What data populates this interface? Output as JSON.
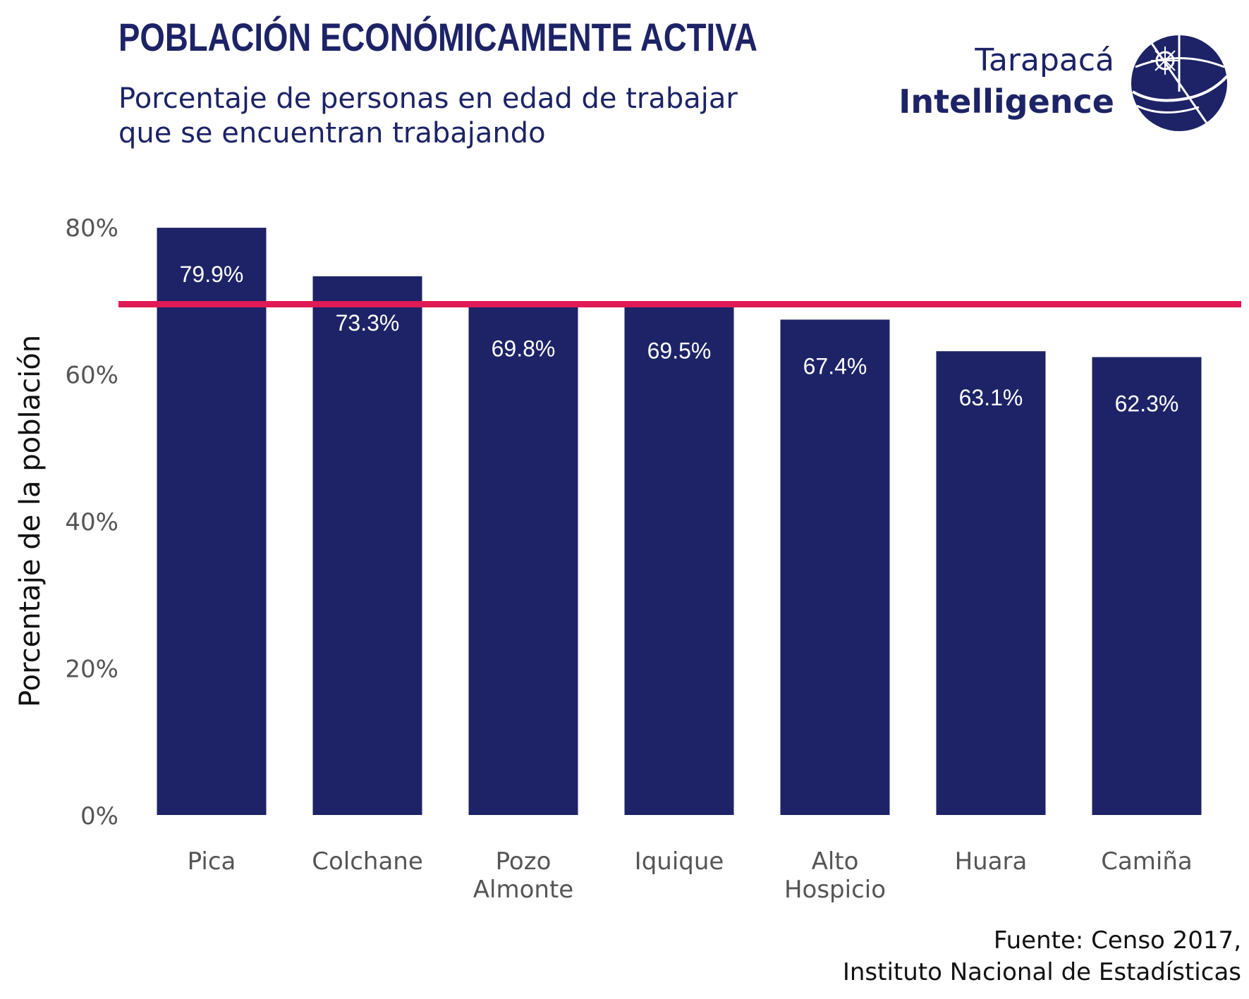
{
  "header": {
    "title": "POBLACIÓN ECONÓMICAMENTE ACTIVA",
    "subtitle_line1": "Porcentaje de personas en edad de trabajar",
    "subtitle_line2": "que se encuentran trabajando"
  },
  "brand": {
    "line1": "Tarapacá",
    "line2": "Intelligence",
    "logo_icon": "globe-logo-icon",
    "color": "#1d2366"
  },
  "source": {
    "line1": "Fuente: Censo 2017,",
    "line2": "Instituto Nacional de Estadísticas"
  },
  "colors": {
    "bar": "#1d2366",
    "reference_line": "#e01a55",
    "title": "#1d2366",
    "tick_text": "#555555",
    "data_label_text": "#ffffff"
  },
  "chart_data": {
    "type": "bar",
    "categories": [
      "Pica",
      "Colchane",
      "Pozo Almonte",
      "Iquique",
      "Alto Hospicio",
      "Huara",
      "Camiña"
    ],
    "category_lines": [
      [
        "Pica"
      ],
      [
        "Colchane"
      ],
      [
        "Pozo",
        "Almonte"
      ],
      [
        "Iquique"
      ],
      [
        "Alto",
        "Hospicio"
      ],
      [
        "Huara"
      ],
      [
        "Camiña"
      ]
    ],
    "values": [
      79.9,
      73.3,
      69.8,
      69.5,
      67.4,
      63.1,
      62.3
    ],
    "data_labels": [
      "79.9%",
      "73.3%",
      "69.8%",
      "69.5%",
      "67.4%",
      "63.1%",
      "62.3%"
    ],
    "ylabel": "Porcentaje de la población",
    "xlabel": "",
    "ylim": [
      0,
      80
    ],
    "y_ticks": [
      0,
      20,
      40,
      60,
      80
    ],
    "y_tick_labels": [
      "0%",
      "20%",
      "40%",
      "60%",
      "80%"
    ],
    "reference_line": 69.5,
    "grid": false
  }
}
